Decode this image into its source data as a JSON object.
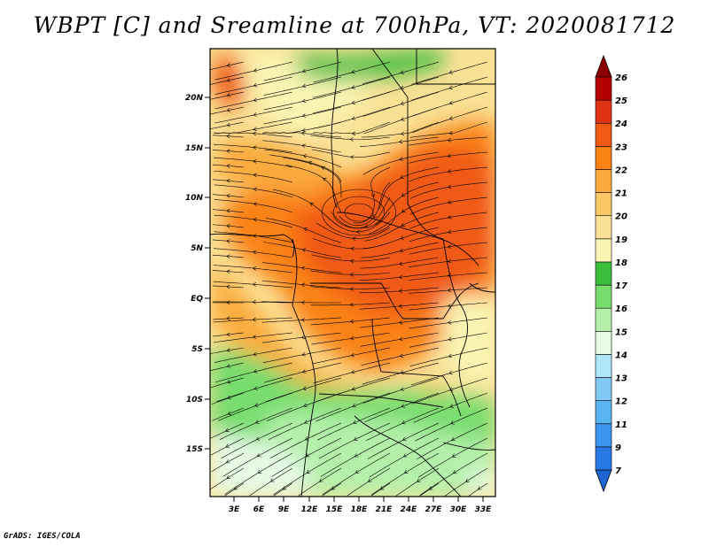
{
  "title": "WBPT [C] and Sreamline at 700hPa, VT: 2020081712",
  "credit": "GrADS: IGES/COLA",
  "map": {
    "lat_labels": [
      "20N",
      "15N",
      "10N",
      "5N",
      "EQ",
      "5S",
      "10S",
      "15S"
    ],
    "lon_labels": [
      "3E",
      "6E",
      "9E",
      "12E",
      "15E",
      "18E",
      "21E",
      "24E",
      "27E",
      "30E",
      "33E"
    ]
  },
  "colorbar": {
    "levels": [
      "7",
      "9",
      "11",
      "12",
      "13",
      "14",
      "15",
      "16",
      "17",
      "18",
      "19",
      "20",
      "21",
      "22",
      "23",
      "24",
      "25",
      "26"
    ],
    "colors": [
      "#1e64d2",
      "#2878e6",
      "#3c96f0",
      "#5ab4f0",
      "#82c8f5",
      "#afe6fa",
      "#e6fae6",
      "#b4f0aa",
      "#78dc6e",
      "#3cbe3c",
      "#faf5b4",
      "#fae196",
      "#fac864",
      "#faaa3c",
      "#fa8214",
      "#f05a14",
      "#e03214",
      "#b40000",
      "#8c0000"
    ]
  }
}
